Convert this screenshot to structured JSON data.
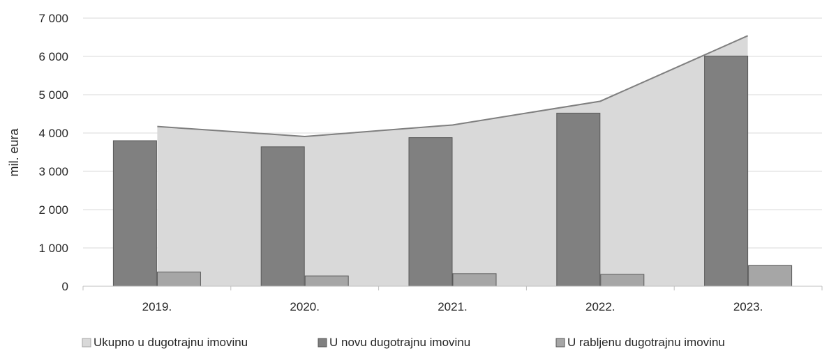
{
  "chart_data": {
    "type": "bar",
    "categories": [
      "2019.",
      "2020.",
      "2021.",
      "2022.",
      "2023."
    ],
    "series": [
      {
        "name": "Ukupno u dugotrajnu imovinu",
        "kind": "area",
        "values": [
          4170,
          3910,
          4210,
          4830,
          6540
        ],
        "color": "#d9d9d9",
        "stroke": "#7f7f7f"
      },
      {
        "name": "U novu dugotrajnu imovinu",
        "kind": "bar",
        "values": [
          3800,
          3640,
          3880,
          4520,
          6010
        ],
        "color": "#808080",
        "stroke": "#595959"
      },
      {
        "name": "U rabljenu dugotrajnu imovinu",
        "kind": "bar",
        "values": [
          370,
          270,
          330,
          310,
          540
        ],
        "color": "#a6a6a6",
        "stroke": "#595959"
      }
    ],
    "ylabel": "mil. eura",
    "ylim": [
      0,
      7000
    ],
    "yticks": [
      0,
      1000,
      2000,
      3000,
      4000,
      5000,
      6000,
      7000
    ],
    "ytick_labels": [
      "0",
      "1 000",
      "2 000",
      "3 000",
      "4 000",
      "5 000",
      "6 000",
      "7 000"
    ],
    "grid": true,
    "legend_position": "bottom"
  }
}
